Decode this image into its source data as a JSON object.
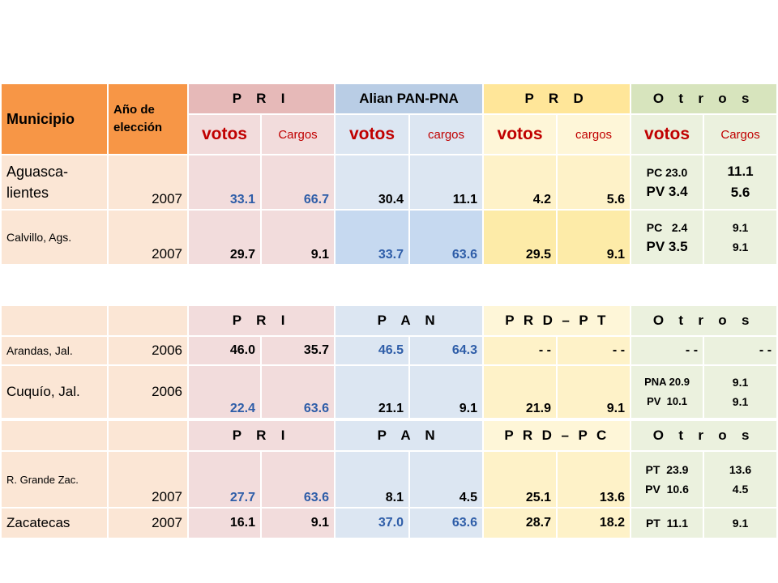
{
  "table1": {
    "header": {
      "municipio": "Municipio",
      "anio": "Año de elección",
      "parties": [
        "P R I",
        "Alian PAN-PNA",
        "P R D",
        "O t r o s"
      ],
      "sub": [
        "votos",
        "Cargos",
        "votos",
        "cargos",
        "votos",
        "cargos",
        "votos",
        "Cargos"
      ]
    },
    "rows": [
      {
        "municipio": "Aguasca- lientes",
        "year": "2007",
        "pri_votos": "33.1",
        "pri_cargos": "66.7",
        "pan_votos": "30.4",
        "pan_cargos": "11.1",
        "prd_votos": "4.2",
        "prd_cargos": "5.6",
        "otros_votos_1": "PC 23.0",
        "otros_votos_2": "PV 3.4",
        "otros_cargos_1": "11.1",
        "otros_cargos_2": "5.6"
      },
      {
        "municipio": "Calvillo,  Ags.",
        "year": "2007",
        "pri_votos": "29.7",
        "pri_cargos": "9.1",
        "pan_votos": "33.7",
        "pan_cargos": "63.6",
        "prd_votos": "29.5",
        "prd_cargos": "9.1",
        "otros_votos_1": "PC   2.4",
        "otros_votos_2": "PV 3.5",
        "otros_cargos_1": "9.1",
        "otros_cargos_2": "9.1"
      }
    ]
  },
  "table2": {
    "parties": [
      "P R I",
      "P A N",
      "P R D – P T",
      "O t r o s"
    ],
    "rows": [
      {
        "municipio": "Arandas,  Jal.",
        "year": "2006",
        "pri_votos": "46.0",
        "pri_cargos": "35.7",
        "pan_votos": "46.5",
        "pan_cargos": "64.3",
        "prd_votos": "- -",
        "prd_cargos": "- -",
        "otros_votos": "- -",
        "otros_cargos": "- -"
      },
      {
        "municipio": "Cuquío, Jal.",
        "year": "2006",
        "pri_votos": "22.4",
        "pri_cargos": "63.6",
        "pan_votos": "21.1",
        "pan_cargos": "9.1",
        "prd_votos": "21.9",
        "prd_cargos": "9.1",
        "otros_votos_1": "PNA 20.9",
        "otros_votos_2": "PV  10.1",
        "otros_cargos_1": "9.1",
        "otros_cargos_2": "9.1"
      }
    ]
  },
  "table3": {
    "parties": [
      "P R I",
      "P A N",
      "P R D – P C",
      "O t r o s"
    ],
    "rows": [
      {
        "municipio": "R. Grande Zac.",
        "year": "2007",
        "pri_votos": "27.7",
        "pri_cargos": "63.6",
        "pan_votos": "8.1",
        "pan_cargos": "4.5",
        "prd_votos": "25.1",
        "prd_cargos": "13.6",
        "otros_votos_1": "PT  23.9",
        "otros_votos_2": "PV  10.6",
        "otros_cargos_1": "13.6",
        "otros_cargos_2": "4.5"
      },
      {
        "municipio": "Zacatecas",
        "year": "2007",
        "pri_votos": "16.1",
        "pri_cargos": "9.1",
        "pan_votos": "37.0",
        "pan_cargos": "63.6",
        "prd_votos": "28.7",
        "prd_cargos": "18.2",
        "otros_votos": "PT  11.1",
        "otros_cargos": "9.1"
      }
    ]
  }
}
